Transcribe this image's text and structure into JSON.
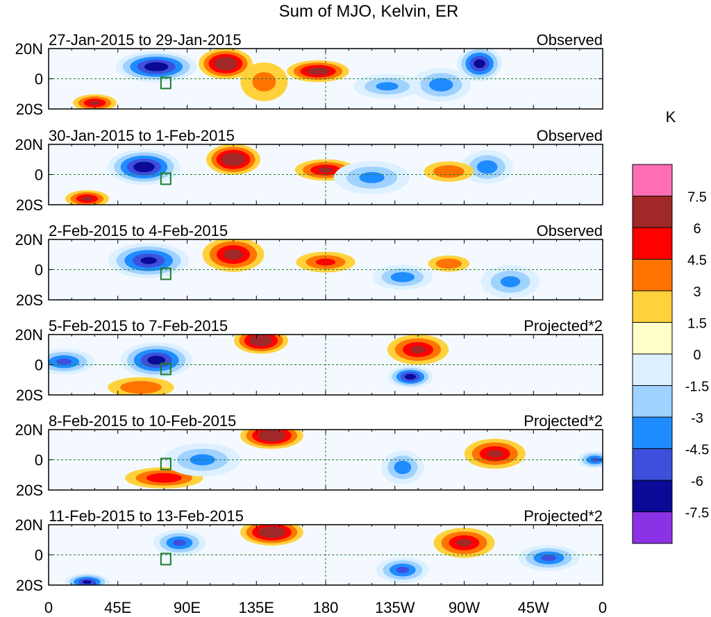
{
  "chart_data": {
    "type": "heatmap",
    "title": "Sum of MJO, Kelvin, ER",
    "units": "K",
    "x_tick_labels": [
      "0",
      "45E",
      "90E",
      "135E",
      "180",
      "135W",
      "90W",
      "45W",
      "0"
    ],
    "x_tick_lons": [
      0,
      45,
      90,
      135,
      180,
      225,
      270,
      315,
      360
    ],
    "y_tick_labels": [
      "20N",
      "0",
      "20S"
    ],
    "y_tick_lats": [
      20,
      0,
      -20
    ],
    "xlim": [
      0,
      360
    ],
    "ylim": [
      -20,
      20
    ],
    "colorbar": {
      "labels": [
        "7.5",
        "6",
        "4.5",
        "3",
        "1.5",
        "0",
        "-1.5",
        "-3",
        "-4.5",
        "-6",
        "-7.5"
      ],
      "colors": [
        "#ff6eb4",
        "#a02828",
        "#ff0000",
        "#ff7400",
        "#ffd23c",
        "#ffffc8",
        "#dcf0ff",
        "#a0d2ff",
        "#1e8cff",
        "#3c50dc",
        "#0a0a96",
        "#8c32e6"
      ]
    },
    "panels": [
      {
        "period": "27-Jan-2015 to 29-Jan-2015",
        "label": "Observed",
        "blobs": [
          {
            "lon": 70,
            "lat": 8,
            "value": -8.5,
            "sx": 18,
            "sy": 7
          },
          {
            "lon": 115,
            "lat": 10,
            "value": 8.0,
            "sx": 12,
            "sy": 7
          },
          {
            "lon": 175,
            "lat": 5,
            "value": 7.0,
            "sx": 14,
            "sy": 5
          },
          {
            "lon": 280,
            "lat": 10,
            "value": -8.0,
            "sx": 10,
            "sy": 8
          },
          {
            "lon": 30,
            "lat": -16,
            "value": 6.0,
            "sx": 10,
            "sy": 4
          },
          {
            "lon": 255,
            "lat": -4,
            "value": -5.0,
            "sx": 14,
            "sy": 8
          },
          {
            "lon": 220,
            "lat": -5,
            "value": -4.5,
            "sx": 16,
            "sy": 6
          },
          {
            "lon": 140,
            "lat": -2,
            "value": 3.0,
            "sx": 12,
            "sy": 10
          }
        ]
      },
      {
        "period": "30-Jan-2015 to 1-Feb-2015",
        "label": "Observed",
        "blobs": [
          {
            "lon": 62,
            "lat": 5,
            "value": -8.5,
            "sx": 16,
            "sy": 8
          },
          {
            "lon": 120,
            "lat": 10,
            "value": 8.0,
            "sx": 12,
            "sy": 7
          },
          {
            "lon": 180,
            "lat": 3,
            "value": 6.0,
            "sx": 14,
            "sy": 5
          },
          {
            "lon": 25,
            "lat": -16,
            "value": 6.0,
            "sx": 10,
            "sy": 4
          },
          {
            "lon": 210,
            "lat": -2,
            "value": -4.5,
            "sx": 18,
            "sy": 8
          },
          {
            "lon": 285,
            "lat": 5,
            "value": -5.0,
            "sx": 12,
            "sy": 8
          },
          {
            "lon": 260,
            "lat": 2,
            "value": 4.0,
            "sx": 12,
            "sy": 5
          }
        ]
      },
      {
        "period": "2-Feb-2015 to 4-Feb-2015",
        "label": "Observed",
        "blobs": [
          {
            "lon": 65,
            "lat": 6,
            "value": -7.5,
            "sx": 18,
            "sy": 8
          },
          {
            "lon": 120,
            "lat": 10,
            "value": 6.5,
            "sx": 14,
            "sy": 8
          },
          {
            "lon": 180,
            "lat": 5,
            "value": 4.5,
            "sx": 14,
            "sy": 5
          },
          {
            "lon": 230,
            "lat": -5,
            "value": -5.0,
            "sx": 14,
            "sy": 6
          },
          {
            "lon": 260,
            "lat": 4,
            "value": 4.0,
            "sx": 10,
            "sy": 4
          },
          {
            "lon": 300,
            "lat": -8,
            "value": -4.5,
            "sx": 14,
            "sy": 8
          }
        ]
      },
      {
        "period": "5-Feb-2015 to 7-Feb-2015",
        "label": "Projected*2",
        "blobs": [
          {
            "lon": 70,
            "lat": 3,
            "value": -8.0,
            "sx": 16,
            "sy": 8
          },
          {
            "lon": 138,
            "lat": 16,
            "value": 8.0,
            "sx": 12,
            "sy": 6
          },
          {
            "lon": 240,
            "lat": 10,
            "value": 6.0,
            "sx": 14,
            "sy": 7
          },
          {
            "lon": 235,
            "lat": -8,
            "value": -8.0,
            "sx": 10,
            "sy": 5
          },
          {
            "lon": 60,
            "lat": -15,
            "value": 4.0,
            "sx": 16,
            "sy": 5
          },
          {
            "lon": 10,
            "lat": 2,
            "value": -6.0,
            "sx": 14,
            "sy": 6
          }
        ]
      },
      {
        "period": "8-Feb-2015 to 10-Feb-2015",
        "label": "Projected*2",
        "blobs": [
          {
            "lon": 145,
            "lat": 16,
            "value": 8.0,
            "sx": 14,
            "sy": 6
          },
          {
            "lon": 290,
            "lat": 4,
            "value": 6.0,
            "sx": 14,
            "sy": 7
          },
          {
            "lon": 75,
            "lat": -12,
            "value": 5.5,
            "sx": 18,
            "sy": 5
          },
          {
            "lon": 100,
            "lat": 0,
            "value": -4.5,
            "sx": 18,
            "sy": 8
          },
          {
            "lon": 230,
            "lat": -5,
            "value": -5.0,
            "sx": 10,
            "sy": 8
          },
          {
            "lon": 355,
            "lat": 0,
            "value": -6.0,
            "sx": 8,
            "sy": 4
          }
        ]
      },
      {
        "period": "11-Feb-2015 to 13-Feb-2015",
        "label": "Projected*2",
        "blobs": [
          {
            "lon": 145,
            "lat": 15,
            "value": 8.0,
            "sx": 14,
            "sy": 6
          },
          {
            "lon": 270,
            "lat": 8,
            "value": 6.0,
            "sx": 14,
            "sy": 7
          },
          {
            "lon": 85,
            "lat": 8,
            "value": -6.0,
            "sx": 12,
            "sy": 6
          },
          {
            "lon": 25,
            "lat": -18,
            "value": -7.5,
            "sx": 10,
            "sy": 4
          },
          {
            "lon": 230,
            "lat": -10,
            "value": -6.0,
            "sx": 12,
            "sy": 6
          },
          {
            "lon": 325,
            "lat": -2,
            "value": -6.0,
            "sx": 14,
            "sy": 6
          }
        ]
      }
    ]
  }
}
